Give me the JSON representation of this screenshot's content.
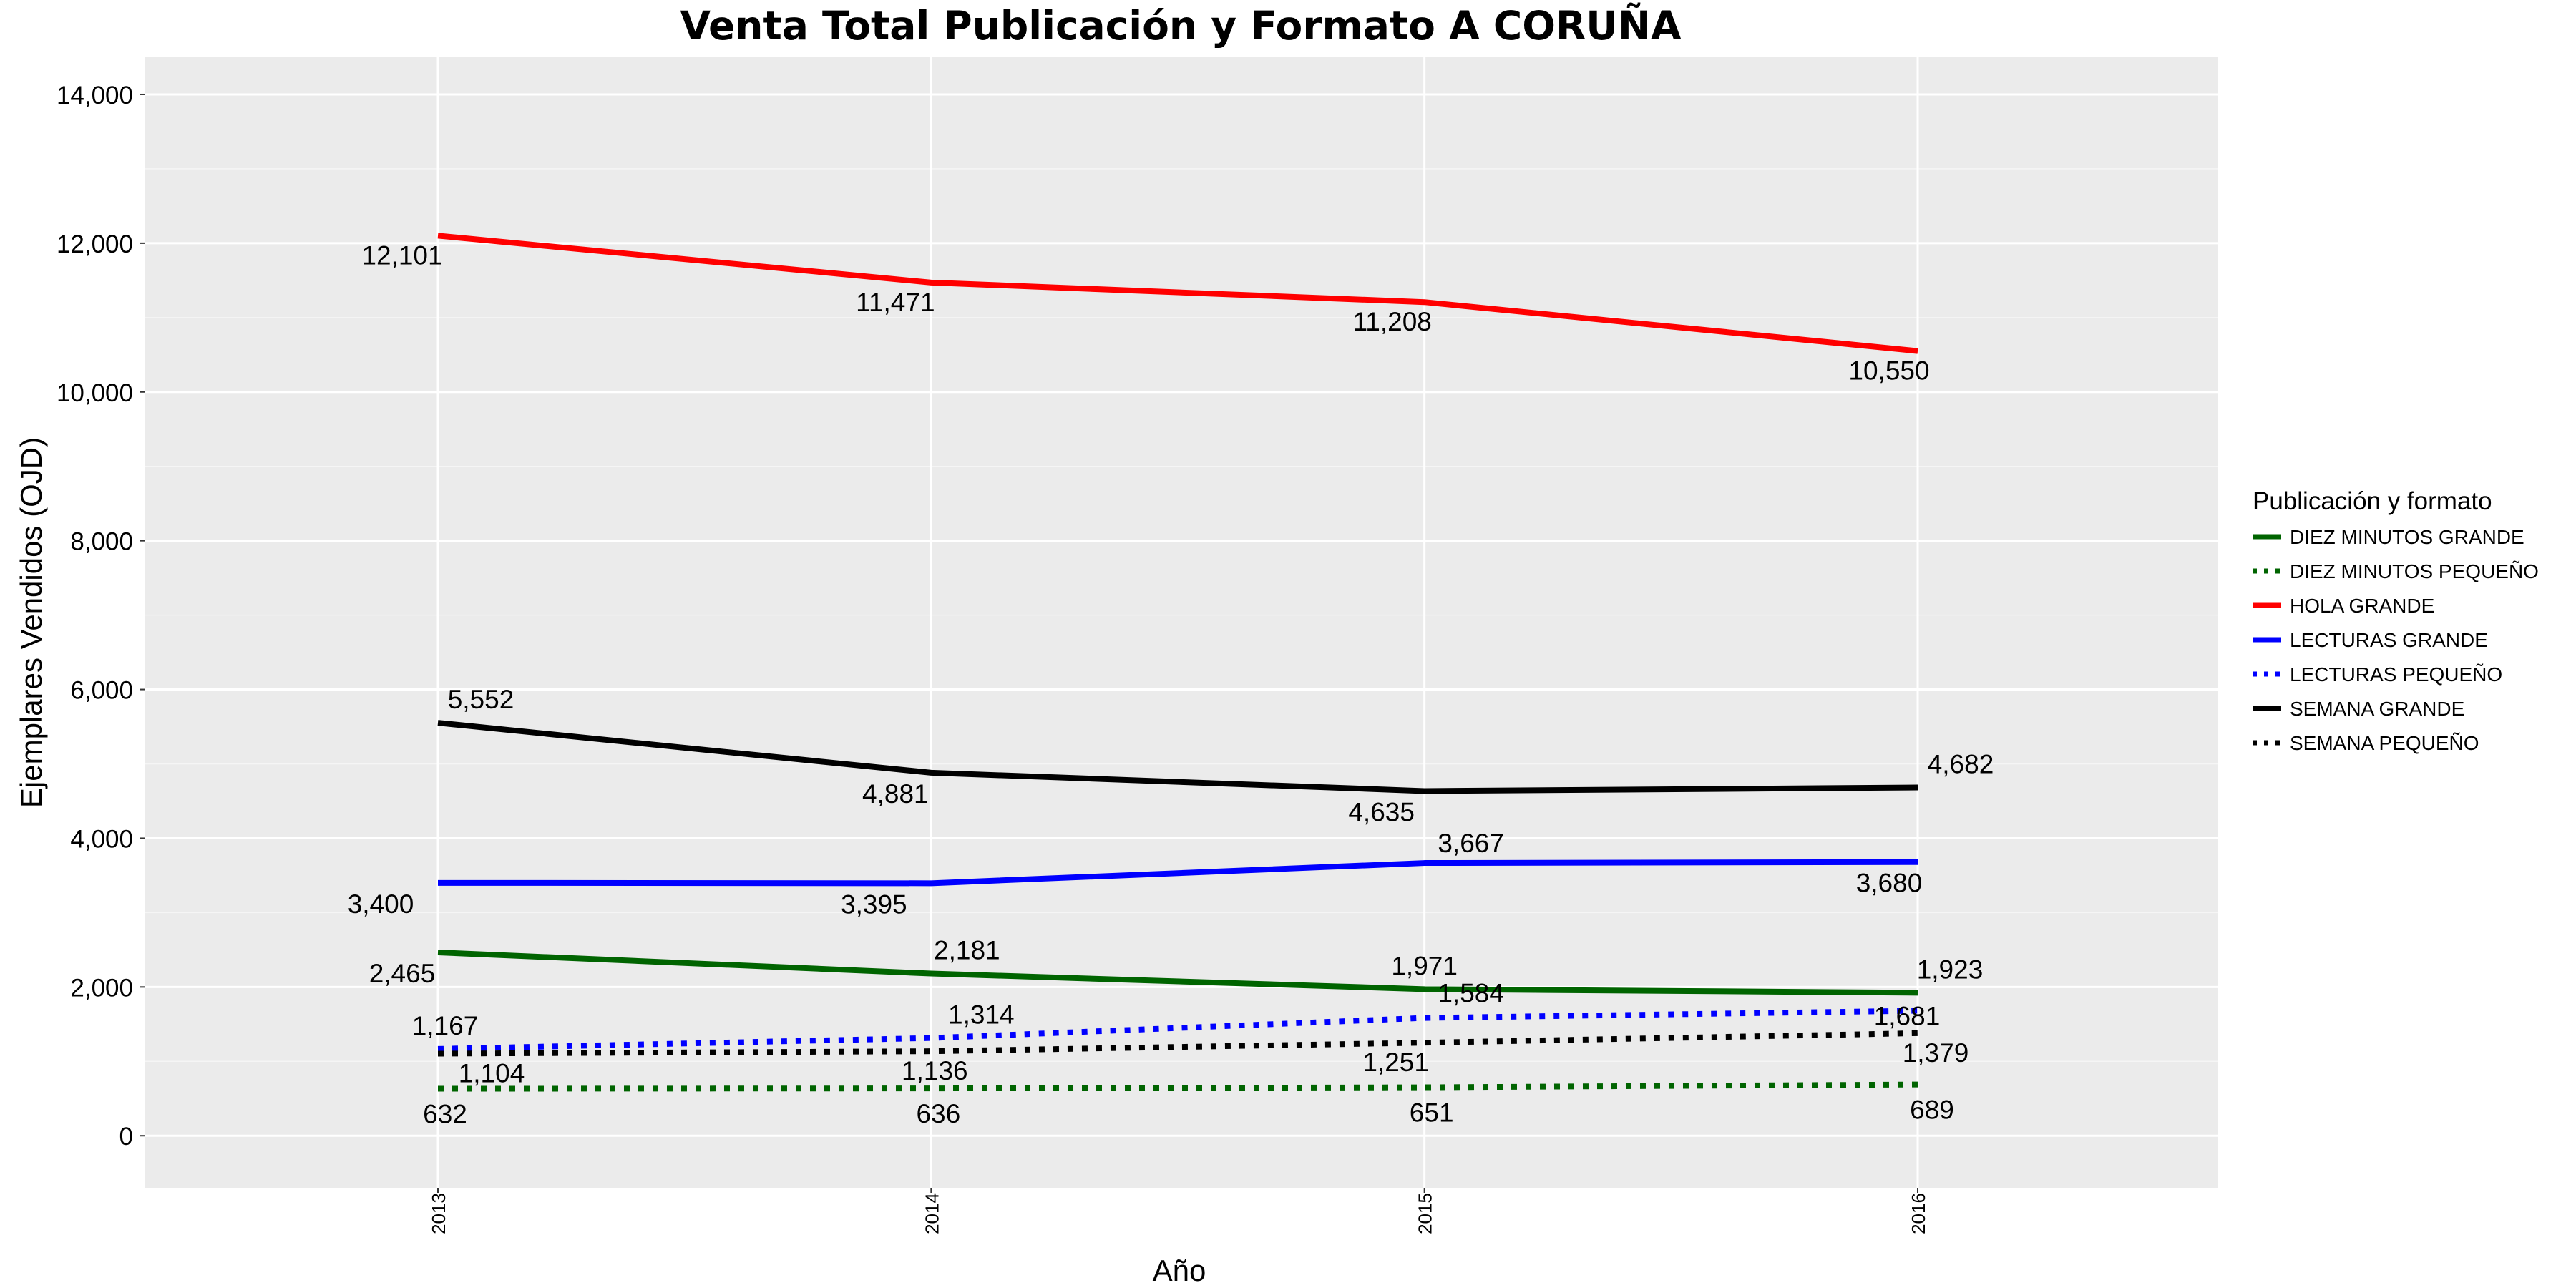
{
  "chart_data": {
    "type": "line",
    "title": "Venta Total Publicación y Formato  A CORUÑA",
    "xlabel": "Año",
    "ylabel": "Ejemplares Vendidos (OJD)",
    "categories": [
      "2013",
      "2014",
      "2015",
      "2016"
    ],
    "ylim": [
      -700,
      14500
    ],
    "yticks": [
      0,
      2000,
      4000,
      6000,
      8000,
      10000,
      12000,
      14000
    ],
    "ytick_labels": [
      "0",
      "2,000",
      "4,000",
      "6,000",
      "8,000",
      "10,000",
      "12,000",
      "14,000"
    ],
    "grid": true,
    "legend_title": "Publicación y formato",
    "legend_position": "right",
    "series": [
      {
        "name": "DIEZ MINUTOS GRANDE",
        "color": "#006400",
        "dash": "solid",
        "values": [
          2465,
          2181,
          1971,
          1923
        ],
        "labels": [
          "2,465",
          "2,181",
          "1,971",
          "1,923"
        ]
      },
      {
        "name": "DIEZ MINUTOS PEQUEÑO",
        "color": "#006400",
        "dash": "dotted",
        "values": [
          632,
          636,
          651,
          689
        ],
        "labels": [
          "632",
          "636",
          "651",
          "689"
        ]
      },
      {
        "name": "HOLA GRANDE",
        "color": "#ff0000",
        "dash": "solid",
        "values": [
          12101,
          11471,
          11208,
          10550
        ],
        "labels": [
          "12,101",
          "11,471",
          "11,208",
          "10,550"
        ]
      },
      {
        "name": "LECTURAS GRANDE",
        "color": "#0000ff",
        "dash": "solid",
        "values": [
          3400,
          3395,
          3667,
          3680
        ],
        "labels": [
          "3,400",
          "3,395",
          "3,667",
          "3,680"
        ]
      },
      {
        "name": "LECTURAS PEQUEÑO",
        "color": "#0000ff",
        "dash": "dotted",
        "values": [
          1167,
          1314,
          1584,
          1681
        ],
        "labels": [
          "1,167",
          "1,314",
          "1,584",
          "1,681"
        ]
      },
      {
        "name": "SEMANA GRANDE",
        "color": "#000000",
        "dash": "solid",
        "values": [
          5552,
          4881,
          4635,
          4682
        ],
        "labels": [
          "5,552",
          "4,881",
          "4,635",
          "4,682"
        ]
      },
      {
        "name": "SEMANA PEQUEÑO",
        "color": "#000000",
        "dash": "dotted",
        "values": [
          1104,
          1136,
          1251,
          1379
        ],
        "labels": [
          "1,104",
          "1,136",
          "1,251",
          "1,379"
        ]
      }
    ]
  }
}
